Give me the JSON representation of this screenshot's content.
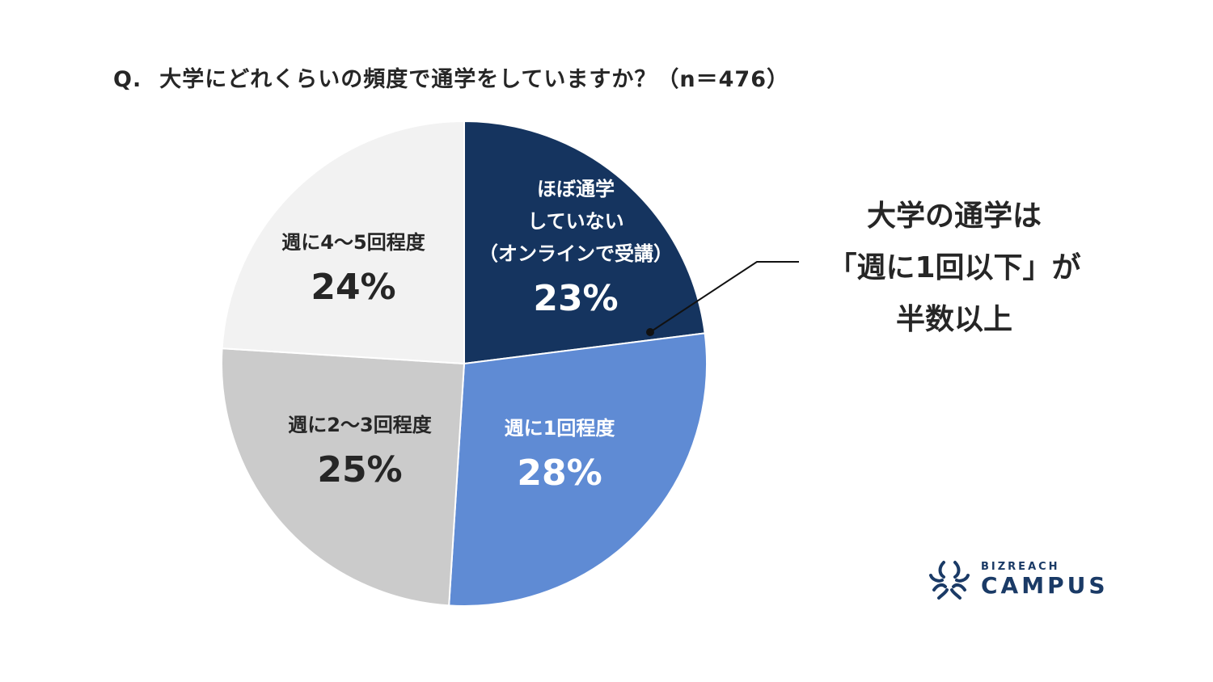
{
  "title": {
    "q": "Q.",
    "text": "大学にどれくらいの頻度で通学をしていますか？（n＝476）"
  },
  "chart_data": {
    "type": "pie",
    "title": "Q.　大学にどれくらいの頻度で通学をしていますか？（n＝476）",
    "n": 476,
    "start_angle": "12 o'clock, clockwise",
    "categories": [
      "ほぼ通学していない（オンラインで受講）",
      "週に1回程度",
      "週に2〜3回程度",
      "週に4〜5回程度"
    ],
    "values": [
      23,
      28,
      25,
      24
    ],
    "unit": "%",
    "colors": [
      "#15345f",
      "#5f8bd4",
      "#cbcbcb",
      "#f2f2f2"
    ],
    "legend": "none (labels inside slices)"
  },
  "slices": [
    {
      "name_lines": [
        "ほぼ通学",
        "していない",
        "（オンラインで受講）"
      ],
      "pct": "23%"
    },
    {
      "name_lines": [
        "週に1回程度"
      ],
      "pct": "28%"
    },
    {
      "name_lines": [
        "週に2〜3回程度"
      ],
      "pct": "25%"
    },
    {
      "name_lines": [
        "週に4〜5回程度"
      ],
      "pct": "24%"
    }
  ],
  "callout": {
    "lines": [
      "大学の通学は",
      "「週に1回以下」が",
      "半数以上"
    ]
  },
  "logo": {
    "top": "BIZREACH",
    "bottom": "CAMPUS",
    "color": "#1a3a66"
  }
}
